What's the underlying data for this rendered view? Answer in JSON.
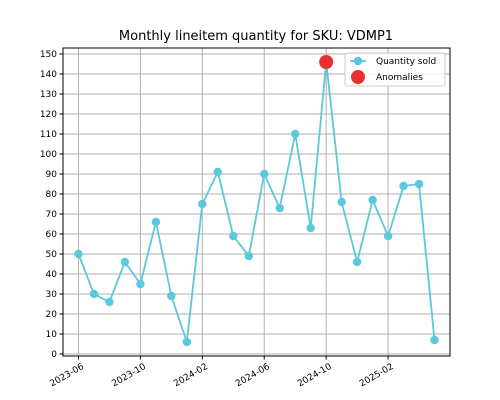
{
  "chart_data": {
    "type": "line",
    "title": "Monthly lineitem quantity for SKU: VDMP1",
    "xlabel": "",
    "ylabel": "",
    "ylim": [
      -1,
      153
    ],
    "xlim": [
      "2023-05",
      "2025-06"
    ],
    "y_ticks": [
      0,
      10,
      20,
      30,
      40,
      50,
      60,
      70,
      80,
      90,
      100,
      110,
      120,
      130,
      140,
      150
    ],
    "x_ticks": [
      "2023-06",
      "2023-10",
      "2024-02",
      "2024-06",
      "2024-10",
      "2025-02"
    ],
    "grid": true,
    "legend_position": "top-right",
    "x": [
      "2023-06",
      "2023-07",
      "2023-08",
      "2023-09",
      "2023-10",
      "2023-11",
      "2023-12",
      "2024-01",
      "2024-02",
      "2024-03",
      "2024-04",
      "2024-05",
      "2024-06",
      "2024-07",
      "2024-08",
      "2024-09",
      "2024-10",
      "2024-11",
      "2024-12",
      "2025-01",
      "2025-02",
      "2025-03",
      "2025-04",
      "2025-05"
    ],
    "series": [
      {
        "name": "Quantity sold",
        "color": "#5bc8dc",
        "values": [
          50,
          30,
          26,
          46,
          35,
          66,
          29,
          6,
          75,
          91,
          59,
          49,
          90,
          73,
          110,
          63,
          146,
          76,
          46,
          77,
          59,
          84,
          85,
          7
        ]
      },
      {
        "name": "Anomalies",
        "color": "#e8302f",
        "points": [
          {
            "x": "2024-10",
            "y": 146
          }
        ]
      }
    ]
  }
}
